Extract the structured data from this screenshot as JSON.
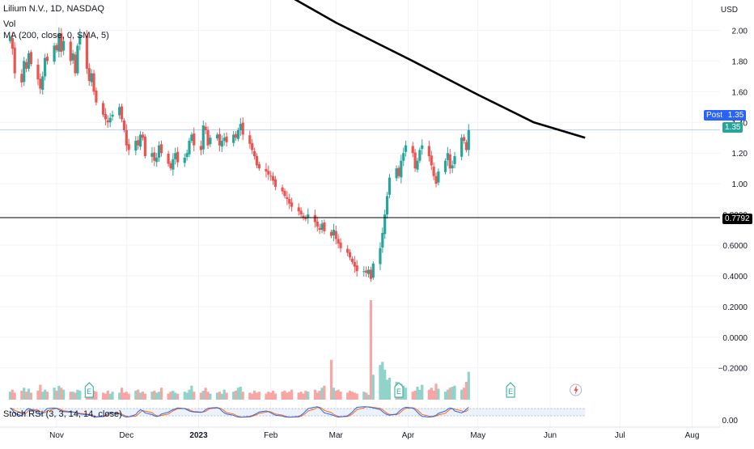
{
  "header": {
    "symbol_line": "Lilium N.V., 1D, NASDAQ",
    "vol_label": "Vol",
    "ma_label": "MA (200, close, 0, SMA, 5)",
    "stoch_label": "Stoch RSI (3, 3, 14, 14, close)"
  },
  "price_axis": {
    "currency": "USD"
  },
  "markers": {
    "post_label": "Post",
    "post_price": "1.35",
    "last_price": "1.35",
    "hline_price": "0.7792"
  },
  "colors": {
    "up": "#26a69a",
    "down": "#ef5350",
    "vol_up": "#8fd3c9",
    "vol_down": "#f7a5a5",
    "ma": "#000000",
    "hline": "#000000",
    "post_line": "#2962ff",
    "stoch_k": "#2962ff",
    "stoch_d": "#ff6d00",
    "earnings": "#26a69a",
    "lightning": "#ef5350"
  },
  "chart_data": {
    "type": "candlestick",
    "title": "Lilium N.V., 1D, NASDAQ",
    "ylabel": "USD",
    "ylim": [
      -0.27,
      2.05
    ],
    "y_ticks": [
      "2.00",
      "1.80",
      "1.60",
      "1.40",
      "1.20",
      "1.00",
      "0.8000",
      "0.6000",
      "0.4000",
      "0.2000",
      "0.0000",
      "−0.2000"
    ],
    "x_ticks": [
      "Nov",
      "Dec",
      "2023",
      "Feb",
      "Mar",
      "Apr",
      "May",
      "Jun",
      "Jul",
      "Aug"
    ],
    "closes": [
      1.95,
      1.88,
      1.72,
      1.66,
      1.8,
      1.75,
      1.85,
      1.78,
      1.68,
      1.62,
      1.7,
      1.82,
      1.8,
      1.9,
      1.87,
      1.98,
      1.86,
      1.93,
      1.8,
      1.85,
      1.72,
      1.9,
      1.97,
      1.75,
      1.67,
      1.72,
      1.6,
      1.53,
      1.45,
      1.42,
      1.4,
      1.43,
      1.45,
      1.5,
      1.42,
      1.35,
      1.25,
      1.22,
      1.28,
      1.25,
      1.32,
      1.3,
      1.18,
      1.2,
      1.15,
      1.17,
      1.25,
      1.2,
      1.13,
      1.1,
      1.16,
      1.2,
      1.14,
      1.17,
      1.2,
      1.28,
      1.32,
      1.25,
      1.22,
      1.38,
      1.35,
      1.25,
      1.3,
      1.32,
      1.25,
      1.28,
      1.3,
      1.27,
      1.32,
      1.3,
      1.35,
      1.39,
      1.32,
      1.26,
      1.22,
      1.18,
      1.12,
      1.1,
      1.08,
      1.06,
      1.05,
      1.02,
      0.98,
      0.95,
      0.92,
      0.9,
      0.87,
      0.85,
      0.82,
      0.8,
      0.78,
      0.77,
      0.8,
      0.75,
      0.72,
      0.7,
      0.74,
      0.69,
      0.66,
      0.7,
      0.64,
      0.61,
      0.58,
      0.55,
      0.52,
      0.49,
      0.46,
      0.43,
      0.43,
      0.42,
      0.44,
      0.38,
      0.48,
      0.58,
      0.68,
      0.8,
      0.92,
      1.04,
      1.1,
      1.05,
      1.15,
      1.2,
      1.25,
      1.2,
      1.1,
      1.15,
      1.22,
      1.25,
      1.18,
      1.12,
      1.05,
      1.0,
      1.08,
      1.15,
      1.2,
      1.1,
      1.12,
      1.18,
      1.3,
      1.28,
      1.22,
      1.35
    ],
    "volume_ratio": [
      0.08,
      0.1,
      0.07,
      0.09,
      0.12,
      0.08,
      0.11,
      0.07,
      0.09,
      0.15,
      0.08,
      0.1,
      0.08,
      0.12,
      0.09,
      0.14,
      0.12,
      0.1,
      0.08,
      0.08,
      0.07,
      0.1,
      0.09,
      0.08,
      0.13,
      0.08,
      0.09,
      0.08,
      0.07,
      0.06,
      0.09,
      0.06,
      0.08,
      0.07,
      0.12,
      0.07,
      0.08,
      0.06,
      0.09,
      0.1,
      0.07,
      0.08,
      0.06,
      0.08,
      0.09,
      0.07,
      0.08,
      0.12,
      0.06,
      0.08,
      0.09,
      0.07,
      0.06,
      0.08,
      0.07,
      0.1,
      0.14,
      0.08,
      0.07,
      0.09,
      0.12,
      0.08,
      0.06,
      0.07,
      0.08,
      0.06,
      0.1,
      0.07,
      0.08,
      0.09,
      0.12,
      0.13,
      0.08,
      0.07,
      0.06,
      0.09,
      0.07,
      0.08,
      0.06,
      0.08,
      0.07,
      0.09,
      0.06,
      0.08,
      0.09,
      0.07,
      0.08,
      0.1,
      0.07,
      0.08,
      0.06,
      0.09,
      0.08,
      0.1,
      0.07,
      0.09,
      0.12,
      0.14,
      0.4,
      0.12,
      0.09,
      0.1,
      0.08,
      0.07,
      0.09,
      0.08,
      0.07,
      0.06,
      0.08,
      0.07,
      0.05,
      1.0,
      0.25,
      0.35,
      0.38,
      0.3,
      0.2,
      0.22,
      0.18,
      0.15,
      0.16,
      0.14,
      0.12,
      0.08,
      0.09,
      0.13,
      0.1,
      0.15,
      0.1,
      0.12,
      0.09,
      0.16,
      0.11,
      0.08,
      0.1,
      0.12,
      0.13,
      0.14,
      0.1,
      0.12,
      0.18,
      0.28,
      0.2,
      0.15
    ],
    "stoch_k": [
      0.85,
      0.7,
      0.4,
      0.2,
      0.45,
      0.7,
      0.8,
      0.7,
      0.55,
      0.35,
      0.4,
      0.65,
      0.8,
      0.85,
      0.82,
      0.7,
      0.6,
      0.55,
      0.5,
      0.52,
      0.45,
      0.4,
      0.35,
      0.3,
      0.25,
      0.2,
      0.12,
      0.1,
      0.15,
      0.25,
      0.4,
      0.5,
      0.45,
      0.35,
      0.25,
      0.15,
      0.1,
      0.12,
      0.3,
      0.55,
      0.7,
      0.62,
      0.45,
      0.3,
      0.2,
      0.15,
      0.2,
      0.35,
      0.5,
      0.62,
      0.7,
      0.78,
      0.85,
      0.8,
      0.7,
      0.6,
      0.55,
      0.52,
      0.48,
      0.55,
      0.7,
      0.82,
      0.85,
      0.88,
      0.8,
      0.6,
      0.45,
      0.35,
      0.25,
      0.15,
      0.1,
      0.08,
      0.1,
      0.15,
      0.22,
      0.3,
      0.4,
      0.52,
      0.6,
      0.55,
      0.45,
      0.35,
      0.25,
      0.18,
      0.12,
      0.1,
      0.08,
      0.1,
      0.15,
      0.25,
      0.4,
      0.6,
      0.8,
      0.92,
      0.95,
      0.85,
      0.65,
      0.45,
      0.3,
      0.22,
      0.15,
      0.1,
      0.12,
      0.2,
      0.35,
      0.5,
      0.72,
      0.9,
      0.95,
      0.95,
      0.92,
      0.9,
      0.85,
      0.72,
      0.55,
      0.4,
      0.3,
      0.25,
      0.35,
      0.55,
      0.7,
      0.85,
      0.9,
      0.85,
      0.7,
      0.5,
      0.3,
      0.15,
      0.1,
      0.12,
      0.18,
      0.25,
      0.4,
      0.6,
      0.75,
      0.85,
      0.8,
      0.6,
      0.45,
      0.55,
      0.75,
      0.9,
      0.92
    ],
    "ma200": [
      {
        "x": "2023-01-31",
        "y": 2.3
      },
      {
        "x": "2023-03-01",
        "y": 2.05
      },
      {
        "x": "2023-04-03",
        "y": 1.8
      },
      {
        "x": "2023-05-01",
        "y": 1.58
      },
      {
        "x": "2023-05-25",
        "y": 1.4
      },
      {
        "x": "2023-06-16",
        "y": 1.3
      }
    ],
    "hline": 0.7792,
    "post": 1.35,
    "last_close": 1.35
  }
}
